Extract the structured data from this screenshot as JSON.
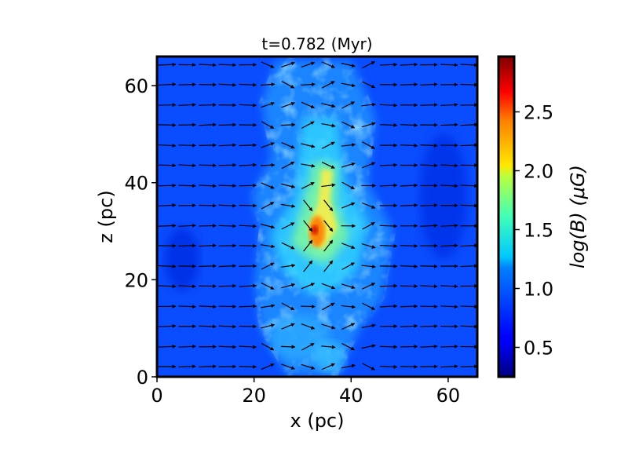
{
  "chart_data": {
    "type": "heatmap",
    "title": "t=0.782 (Myr)",
    "xlabel": "x (pc)",
    "ylabel": "z (pc)",
    "xlim": [
      0,
      66
    ],
    "ylim": [
      0,
      66
    ],
    "x_ticks": [
      0,
      20,
      40,
      60
    ],
    "y_ticks": [
      0,
      20,
      40,
      60
    ],
    "x_tick_labels": [
      "0",
      "20",
      "40",
      "60"
    ],
    "y_tick_labels": [
      "0",
      "20",
      "40",
      "60"
    ],
    "colorbar": {
      "label": "log(B) (μG)",
      "colormap": "jet",
      "range": [
        0.25,
        2.97
      ],
      "ticks": [
        0.5,
        1.0,
        1.5,
        2.0,
        2.5
      ],
      "tick_labels": [
        "0.5",
        "1.0",
        "1.5",
        "2.0",
        "2.5"
      ]
    },
    "background_value": 0.7,
    "peak": {
      "x": 32.5,
      "z": 30.5,
      "value": 2.9
    },
    "vector_field": {
      "description": "magnetic field direction arrows",
      "x_positions": [
        2.1,
        6.2,
        10.4,
        14.5,
        18.7,
        22.8,
        27.0,
        31.1,
        35.3,
        39.4,
        43.6,
        47.7,
        51.9,
        56.0,
        60.2,
        64.3
      ],
      "z_positions": [
        2.1,
        6.2,
        10.4,
        14.5,
        18.7,
        22.8,
        27.0,
        31.1,
        35.3,
        39.4,
        43.6,
        47.7,
        51.9,
        56.0,
        60.2,
        64.3
      ],
      "dominant_direction": "+x"
    },
    "colors": {
      "background_field": "#0a50ff",
      "arrow": "#000000",
      "frame": "#000000"
    }
  }
}
